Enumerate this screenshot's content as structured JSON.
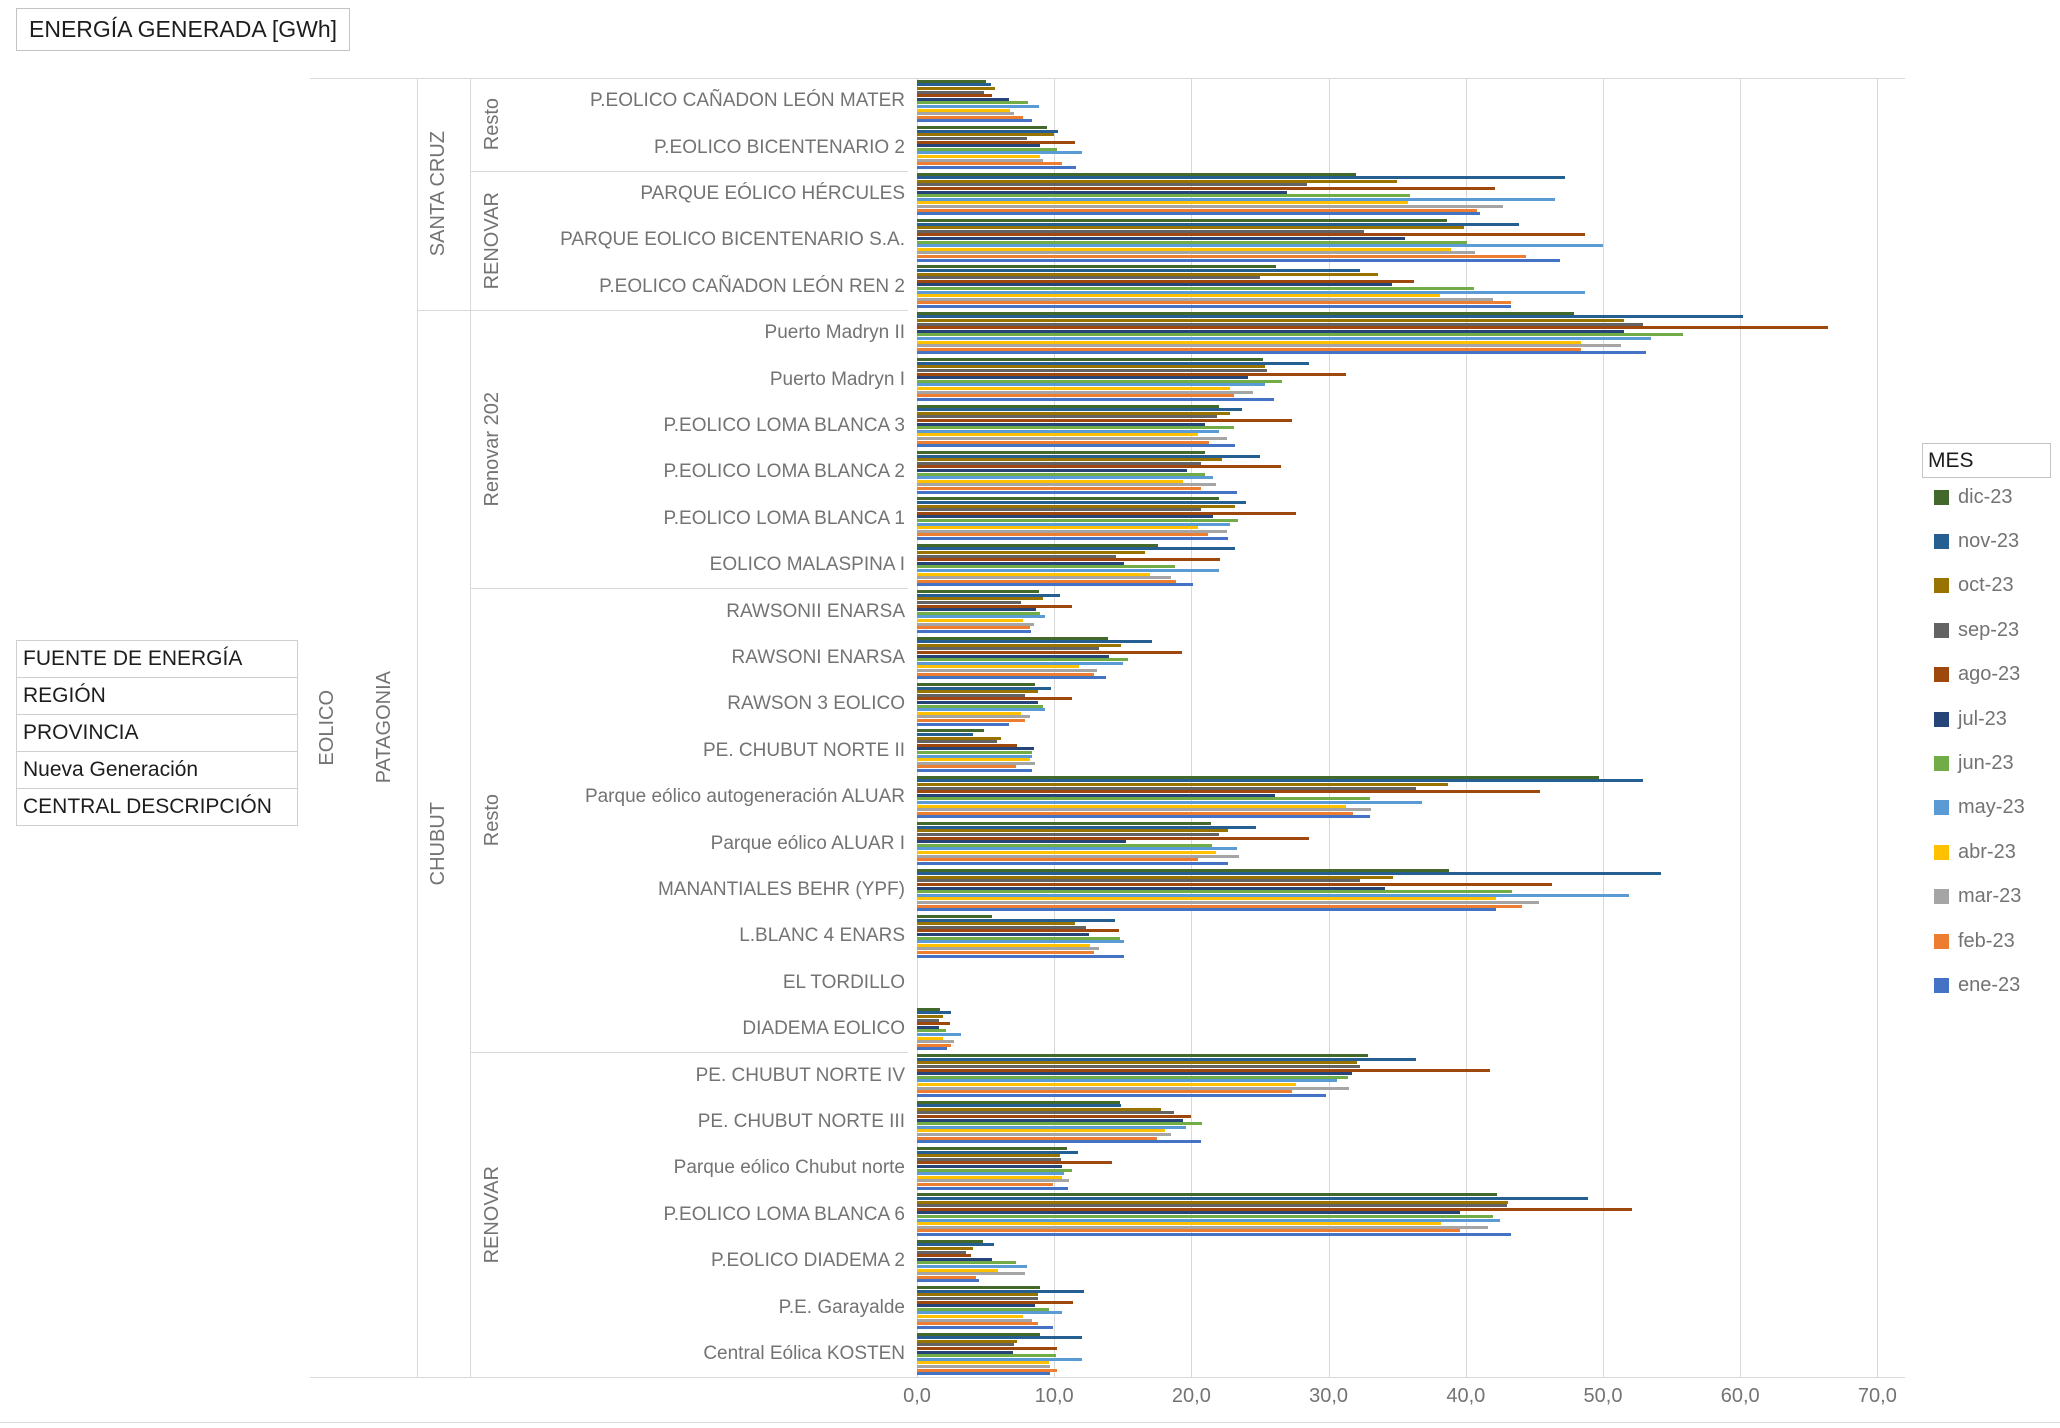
{
  "title": "ENERGÍA GENERADA [GWh]",
  "field_buttons": [
    "FUENTE DE ENERGÍA",
    "REGIÓN",
    "PROVINCIA",
    "Nueva Generación",
    "CENTRAL DESCRIPCIÓN"
  ],
  "legend": {
    "title": "MES",
    "items": [
      {
        "label": "dic-23",
        "color": "#43682B"
      },
      {
        "label": "nov-23",
        "color": "#255E91"
      },
      {
        "label": "oct-23",
        "color": "#997300"
      },
      {
        "label": "sep-23",
        "color": "#636363"
      },
      {
        "label": "ago-23",
        "color": "#9E480E"
      },
      {
        "label": "jul-23",
        "color": "#264478"
      },
      {
        "label": "jun-23",
        "color": "#70AD47"
      },
      {
        "label": "may-23",
        "color": "#5B9BD5"
      },
      {
        "label": "abr-23",
        "color": "#FFC000"
      },
      {
        "label": "mar-23",
        "color": "#A5A5A5"
      },
      {
        "label": "feb-23",
        "color": "#ED7D31"
      },
      {
        "label": "ene-23",
        "color": "#4472C4"
      }
    ]
  },
  "chart_data": {
    "type": "bar",
    "orientation": "horizontal",
    "title": "ENERGÍA GENERADA [GWh]",
    "value_unit": "GWh",
    "x_axis": {
      "ticks": [
        "0,0",
        "10,0",
        "20,0",
        "30,0",
        "40,0",
        "50,0",
        "60,0",
        "70,0"
      ],
      "tick_values": [
        0,
        10,
        20,
        30,
        40,
        50,
        60,
        70
      ],
      "grid": true
    },
    "series_order_top_to_bottom": [
      "dic-23",
      "nov-23",
      "oct-23",
      "sep-23",
      "ago-23",
      "jul-23",
      "jun-23",
      "may-23",
      "abr-23",
      "mar-23",
      "feb-23",
      "ene-23"
    ],
    "fuente": "EOLICO",
    "region": "PATAGONIA",
    "provincias": [
      {
        "name": "SANTA CRUZ",
        "programas": [
          {
            "name": "Resto",
            "plants": [
              {
                "name": "P.EOLICO CAÑADON LEÓN MATER",
                "values": [
                  5.0,
                  5.4,
                  5.7,
                  4.9,
                  5.5,
                  6.7,
                  8.1,
                  8.9,
                  6.8,
                  7.1,
                  7.7,
                  8.4
                ]
              },
              {
                "name": "P.EOLICO BICENTENARIO 2",
                "values": [
                  9.5,
                  10.3,
                  10.0,
                  8.0,
                  11.5,
                  9.0,
                  10.2,
                  12.0,
                  9.0,
                  9.2,
                  10.6,
                  11.6
                ]
              }
            ]
          },
          {
            "name": "RENOVAR",
            "plants": [
              {
                "name": "PARQUE EÓLICO HÉRCULES",
                "values": [
                  32.0,
                  47.2,
                  35.0,
                  28.4,
                  42.1,
                  27.0,
                  35.9,
                  46.5,
                  35.8,
                  42.7,
                  40.8,
                  41.0
                ]
              },
              {
                "name": "PARQUE EOLICO BICENTENARIO S.A.",
                "values": [
                  38.6,
                  43.9,
                  39.9,
                  32.6,
                  48.7,
                  35.6,
                  40.1,
                  50.0,
                  38.9,
                  40.7,
                  44.4,
                  46.9
                ]
              },
              {
                "name": "P.EOLICO CAÑADON LEÓN REN 2",
                "values": [
                  26.2,
                  32.3,
                  33.6,
                  25.0,
                  36.2,
                  34.6,
                  40.6,
                  48.7,
                  38.1,
                  42.0,
                  43.3,
                  43.3
                ]
              }
            ]
          }
        ]
      },
      {
        "name": "CHUBUT",
        "programas": [
          {
            "name": "Renovar 202",
            "plants": [
              {
                "name": "Puerto Madryn II",
                "values": [
                  47.9,
                  60.2,
                  51.5,
                  52.9,
                  66.4,
                  51.5,
                  55.8,
                  53.5,
                  48.4,
                  51.3,
                  48.4,
                  53.1
                ]
              },
              {
                "name": "Puerto Madryn I",
                "values": [
                  25.2,
                  28.6,
                  25.4,
                  25.5,
                  31.3,
                  24.1,
                  26.6,
                  25.4,
                  22.8,
                  24.5,
                  23.1,
                  26.0
                ]
              },
              {
                "name": "P.EOLICO LOMA BLANCA 3",
                "values": [
                  22.0,
                  23.7,
                  22.8,
                  21.9,
                  27.3,
                  21.0,
                  23.1,
                  22.0,
                  20.5,
                  22.6,
                  21.3,
                  23.2
                ]
              },
              {
                "name": "P.EOLICO LOMA BLANCA 2",
                "values": [
                  21.0,
                  25.0,
                  22.2,
                  20.7,
                  26.5,
                  19.7,
                  21.0,
                  21.6,
                  19.4,
                  21.8,
                  20.7,
                  23.3
                ]
              },
              {
                "name": "P.EOLICO LOMA BLANCA 1",
                "values": [
                  22.0,
                  24.0,
                  23.2,
                  20.7,
                  27.6,
                  21.6,
                  23.4,
                  22.8,
                  20.5,
                  22.6,
                  21.2,
                  22.7
                ]
              },
              {
                "name": "EOLICO MALASPINA I",
                "values": [
                  17.6,
                  23.2,
                  16.6,
                  14.5,
                  22.1,
                  15.1,
                  18.8,
                  22.0,
                  17.0,
                  18.5,
                  18.9,
                  20.1
                ]
              }
            ]
          },
          {
            "name": "Resto",
            "plants": [
              {
                "name": "RAWSONII ENARSA",
                "values": [
                  8.9,
                  10.4,
                  9.2,
                  7.6,
                  11.3,
                  8.7,
                  9.0,
                  9.3,
                  7.7,
                  8.5,
                  8.2,
                  8.3
                ]
              },
              {
                "name": "RAWSONI  ENARSA",
                "values": [
                  13.9,
                  17.1,
                  14.9,
                  13.3,
                  19.3,
                  14.0,
                  15.4,
                  15.0,
                  11.8,
                  13.1,
                  12.9,
                  13.8
                ]
              },
              {
                "name": "RAWSON 3 EOLICO",
                "values": [
                  8.6,
                  9.8,
                  8.8,
                  7.9,
                  11.3,
                  8.8,
                  9.2,
                  9.3,
                  7.6,
                  8.2,
                  7.9,
                  6.7
                ]
              },
              {
                "name": "PE. CHUBUT NORTE II",
                "values": [
                  4.9,
                  4.1,
                  6.1,
                  5.8,
                  7.3,
                  8.5,
                  8.4,
                  8.4,
                  8.2,
                  8.6,
                  7.2,
                  8.4
                ]
              },
              {
                "name": "Parque eólico autogeneración ALUAR",
                "values": [
                  49.7,
                  52.9,
                  38.7,
                  36.4,
                  45.4,
                  26.1,
                  33.0,
                  36.8,
                  31.3,
                  33.1,
                  31.8,
                  33.0
                ]
              },
              {
                "name": "Parque eólico ALUAR I",
                "values": [
                  21.4,
                  24.7,
                  22.7,
                  22.0,
                  28.6,
                  15.2,
                  21.5,
                  23.3,
                  21.8,
                  23.5,
                  20.5,
                  22.7
                ]
              },
              {
                "name": "MANANTIALES BEHR (YPF)",
                "values": [
                  38.8,
                  54.2,
                  34.7,
                  32.3,
                  46.3,
                  34.1,
                  43.4,
                  51.9,
                  42.2,
                  45.3,
                  44.1,
                  42.2
                ]
              },
              {
                "name": "L.BLANC 4 ENARS",
                "values": [
                  5.5,
                  14.4,
                  11.5,
                  12.3,
                  14.7,
                  12.5,
                  14.8,
                  15.1,
                  12.6,
                  13.3,
                  12.9,
                  15.1
                ]
              },
              {
                "name": "EL TORDILLO",
                "values": [
                  0,
                  0,
                  0,
                  0,
                  0,
                  0,
                  0,
                  0,
                  0,
                  0,
                  0,
                  0
                ]
              },
              {
                "name": "DIADEMA EOLICO",
                "values": [
                  1.7,
                  2.5,
                  1.9,
                  1.6,
                  2.4,
                  1.6,
                  2.1,
                  3.2,
                  1.9,
                  2.7,
                  2.5,
                  2.2
                ]
              }
            ]
          },
          {
            "name": "RENOVAR",
            "plants": [
              {
                "name": "PE. CHUBUT NORTE IV",
                "values": [
                  32.9,
                  36.4,
                  32.1,
                  32.3,
                  41.8,
                  31.7,
                  31.4,
                  30.6,
                  27.6,
                  31.5,
                  27.3,
                  29.8
                ]
              },
              {
                "name": "PE. CHUBUT NORTE III",
                "values": [
                  14.8,
                  14.9,
                  17.8,
                  18.7,
                  20.0,
                  19.4,
                  20.8,
                  19.6,
                  18.1,
                  18.5,
                  17.5,
                  20.7
                ]
              },
              {
                "name": "Parque eólico Chubut norte",
                "values": [
                  10.9,
                  11.7,
                  10.4,
                  10.5,
                  14.2,
                  10.6,
                  11.3,
                  10.7,
                  10.6,
                  11.1,
                  9.9,
                  11.0
                ]
              },
              {
                "name": "P.EOLICO LOMA BLANCA 6",
                "values": [
                  42.3,
                  48.9,
                  43.1,
                  43.0,
                  52.1,
                  39.6,
                  42.0,
                  42.5,
                  38.2,
                  41.6,
                  39.6,
                  43.3
                ]
              },
              {
                "name": "P.EOLICO DIADEMA 2",
                "values": [
                  4.8,
                  5.6,
                  4.1,
                  3.6,
                  3.9,
                  5.5,
                  7.2,
                  8.0,
                  5.9,
                  7.9,
                  4.3,
                  4.5
                ]
              },
              {
                "name": "P.E. Garayalde",
                "values": [
                  9.0,
                  12.2,
                  8.8,
                  8.8,
                  11.4,
                  8.6,
                  9.6,
                  10.6,
                  7.7,
                  8.4,
                  8.8,
                  9.9
                ]
              },
              {
                "name": "Central Eólica KOSTEN",
                "values": [
                  9.0,
                  12.0,
                  7.3,
                  7.1,
                  10.2,
                  7.0,
                  10.1,
                  12.0,
                  9.6,
                  9.7,
                  10.2,
                  9.7
                ]
              }
            ]
          }
        ]
      }
    ]
  }
}
